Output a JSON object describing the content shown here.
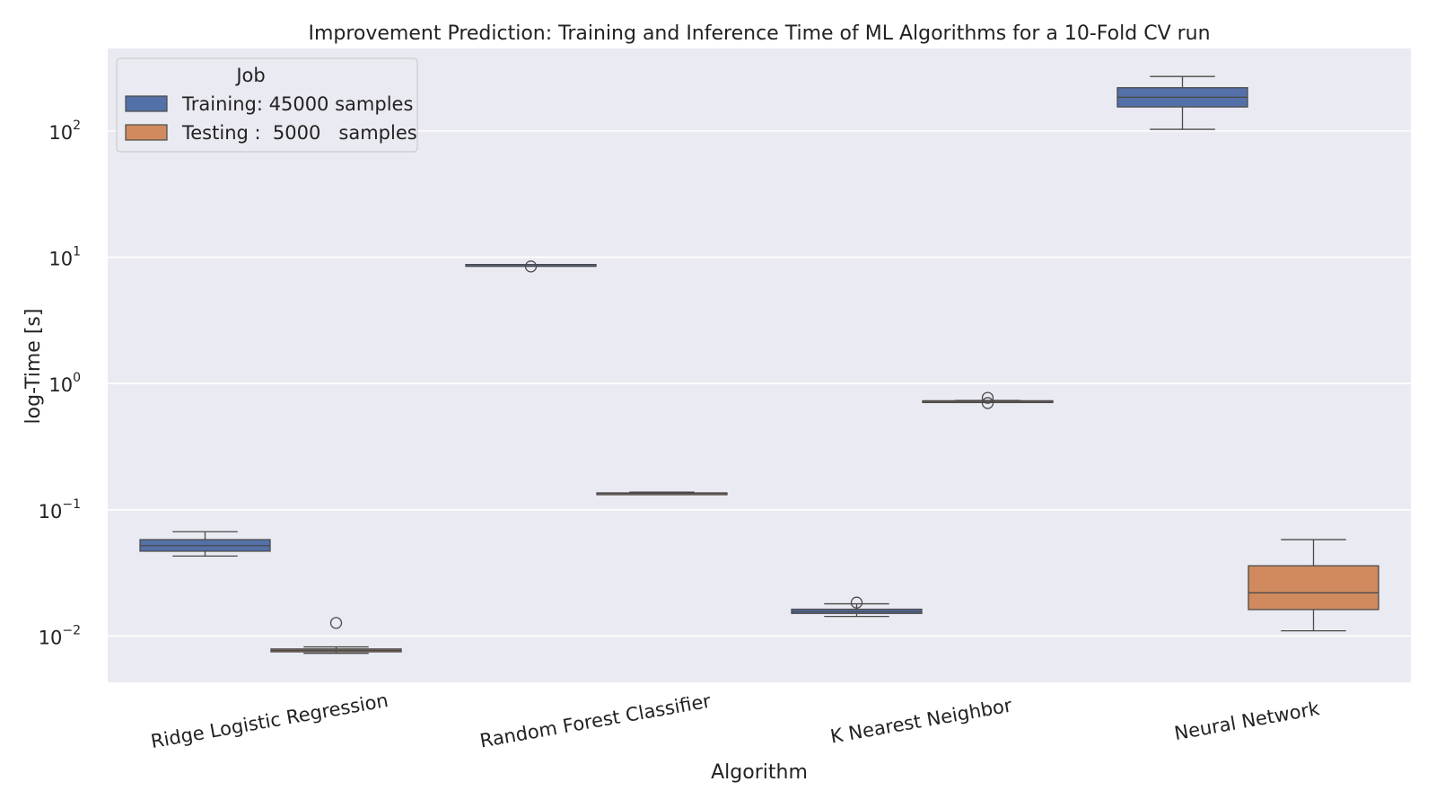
{
  "chart_data": {
    "type": "box",
    "title": "Improvement Prediction: Training and Inference Time of ML Algorithms for a 10-Fold CV run",
    "xlabel": "Algorithm",
    "ylabel": "log-Time [s]",
    "yscale": "log",
    "ylim": [
      0.0043,
      450
    ],
    "yticks": [
      {
        "value": 0.01,
        "base": "10",
        "exp": "−2"
      },
      {
        "value": 0.1,
        "base": "10",
        "exp": "−1"
      },
      {
        "value": 1,
        "base": "10",
        "exp": "0"
      },
      {
        "value": 10,
        "base": "10",
        "exp": "1"
      },
      {
        "value": 100,
        "base": "10",
        "exp": "2"
      }
    ],
    "grid": true,
    "legend": {
      "title": "Job",
      "placement": "top-left"
    },
    "categories": [
      "Ridge Logistic Regression",
      "Random Forest Classifier",
      "K Nearest Neighbor",
      "Neural Network"
    ],
    "series": [
      {
        "name": "Training: 45000 samples",
        "color": "#5470a8",
        "boxes": [
          {
            "whislo": 0.043,
            "q1": 0.047,
            "med": 0.052,
            "q3": 0.058,
            "whishi": 0.067,
            "fliers": []
          },
          {
            "whislo": 8.75,
            "q1": 8.75,
            "med": 8.75,
            "q3": 8.75,
            "whishi": 8.75,
            "fliers": [
              8.45
            ]
          },
          {
            "whislo": 0.0143,
            "q1": 0.0151,
            "med": 0.0156,
            "q3": 0.0163,
            "whishi": 0.018,
            "fliers": [
              0.0184
            ]
          },
          {
            "whislo": 103,
            "q1": 155,
            "med": 185,
            "q3": 220,
            "whishi": 270,
            "fliers": []
          }
        ]
      },
      {
        "name": "Testing :  5000   samples",
        "color": "#d08a5e",
        "boxes": [
          {
            "whislo": 0.0073,
            "q1": 0.0075,
            "med": 0.0077,
            "q3": 0.0079,
            "whishi": 0.0082,
            "fliers": [
              0.0127
            ]
          },
          {
            "whislo": 0.133,
            "q1": 0.134,
            "med": 0.135,
            "q3": 0.136,
            "whishi": 0.138,
            "fliers": []
          },
          {
            "whislo": 0.72,
            "q1": 0.72,
            "med": 0.725,
            "q3": 0.73,
            "whishi": 0.735,
            "fliers": [
              0.77,
              0.7
            ]
          },
          {
            "whislo": 0.011,
            "q1": 0.0162,
            "med": 0.022,
            "q3": 0.036,
            "whishi": 0.058,
            "fliers": []
          }
        ]
      }
    ]
  }
}
